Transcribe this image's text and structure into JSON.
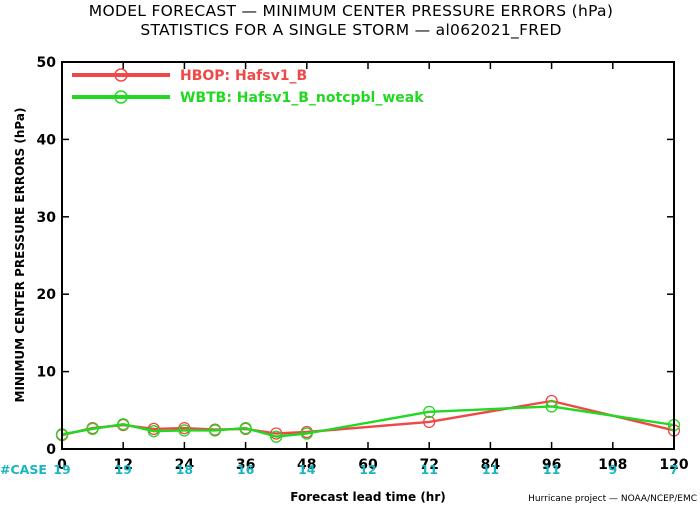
{
  "title_line1": "MODEL FORECAST — MINIMUM CENTER PRESSURE ERRORS (hPa)",
  "title_line2": "STATISTICS FOR A SINGLE STORM — al062021_FRED",
  "credit": "Hurricane project — NOAA/NCEP/EMC",
  "case_label": "#CASE",
  "chart_data": {
    "type": "line",
    "xlabel": "Forecast lead time (hr)",
    "ylabel": "MINIMUM CENTER PRESSURE ERRORS (hPa)",
    "xlim": [
      0,
      120
    ],
    "ylim": [
      0,
      50
    ],
    "xticks": [
      "0",
      "12",
      "24",
      "36",
      "48",
      "60",
      "72",
      "84",
      "96",
      "108",
      "120"
    ],
    "yticks": [
      "0",
      "10",
      "20",
      "30",
      "40",
      "50"
    ],
    "grid": false,
    "legend_position": "top-left",
    "case_counts": [
      {
        "x": 0,
        "n": "19"
      },
      {
        "x": 12,
        "n": "19"
      },
      {
        "x": 24,
        "n": "18"
      },
      {
        "x": 36,
        "n": "16"
      },
      {
        "x": 48,
        "n": "14"
      },
      {
        "x": 60,
        "n": "12"
      },
      {
        "x": 72,
        "n": "11"
      },
      {
        "x": 84,
        "n": "11"
      },
      {
        "x": 96,
        "n": "11"
      },
      {
        "x": 108,
        "n": "9"
      },
      {
        "x": 120,
        "n": "7"
      }
    ],
    "series": [
      {
        "name": "HBOP: Hafsv1_B",
        "color": "#f04848",
        "line_points": [
          [
            0,
            1.8
          ],
          [
            6,
            2.7
          ],
          [
            12,
            3.1
          ],
          [
            18,
            2.6
          ],
          [
            24,
            2.7
          ],
          [
            30,
            2.5
          ],
          [
            36,
            2.6
          ],
          [
            42,
            2.0
          ],
          [
            48,
            2.2
          ],
          [
            72,
            3.5
          ],
          [
            96,
            6.2
          ],
          [
            120,
            2.4
          ]
        ],
        "markers": [
          [
            0,
            1.8
          ],
          [
            6,
            2.7
          ],
          [
            12,
            3.1
          ],
          [
            18,
            2.6
          ],
          [
            24,
            2.7
          ],
          [
            30,
            2.5
          ],
          [
            36,
            2.6
          ],
          [
            42,
            2.0
          ],
          [
            48,
            2.2
          ],
          [
            72,
            3.5
          ],
          [
            96,
            6.2
          ],
          [
            120,
            2.4
          ]
        ]
      },
      {
        "name": "WBTB: Hafsv1_B_notcpbl_weak",
        "color": "#22d822",
        "line_points": [
          [
            0,
            1.9
          ],
          [
            6,
            2.6
          ],
          [
            12,
            3.2
          ],
          [
            18,
            2.3
          ],
          [
            24,
            2.4
          ],
          [
            30,
            2.4
          ],
          [
            36,
            2.7
          ],
          [
            42,
            1.6
          ],
          [
            48,
            2.0
          ],
          [
            72,
            4.8
          ],
          [
            96,
            5.5
          ],
          [
            120,
            3.1
          ]
        ],
        "markers": [
          [
            0,
            1.9
          ],
          [
            6,
            2.6
          ],
          [
            12,
            3.2
          ],
          [
            18,
            2.3
          ],
          [
            24,
            2.4
          ],
          [
            30,
            2.4
          ],
          [
            36,
            2.7
          ],
          [
            42,
            1.6
          ],
          [
            48,
            2.0
          ],
          [
            72,
            4.8
          ],
          [
            96,
            5.5
          ],
          [
            120,
            3.1
          ]
        ]
      }
    ]
  }
}
